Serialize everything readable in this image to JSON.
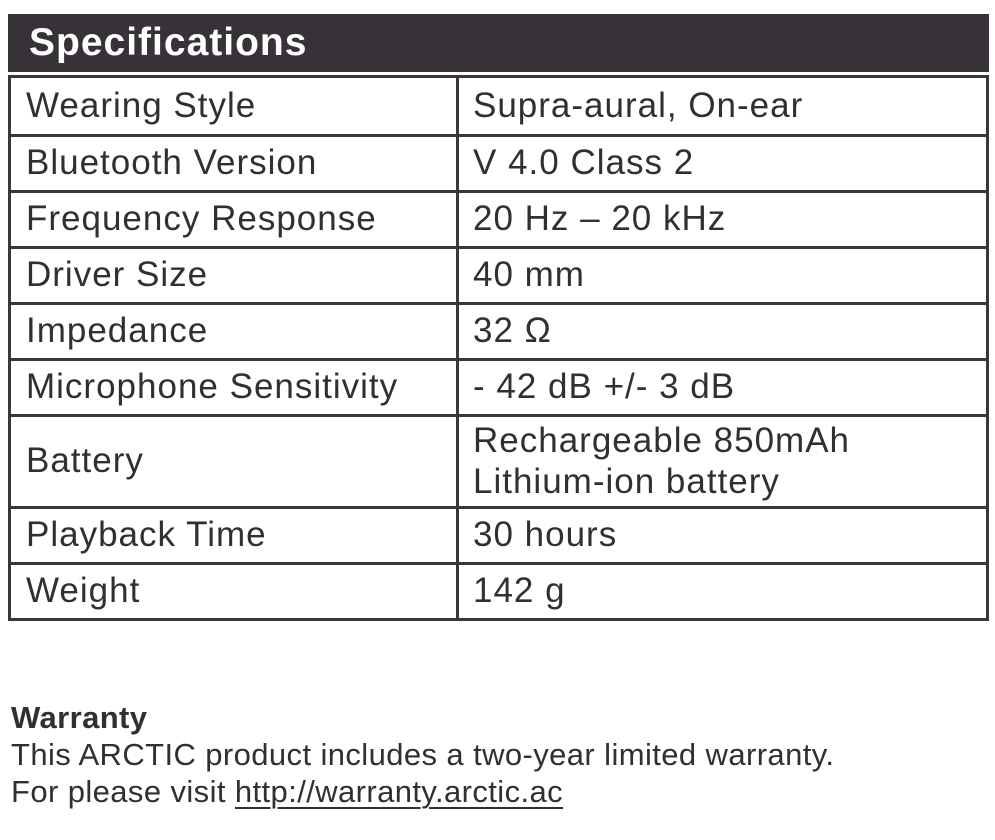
{
  "colors": {
    "header_bg": "#373237",
    "border": "#3a363a",
    "text": "#322e33"
  },
  "spec_table": {
    "title": "Specifications",
    "rows": [
      {
        "label": "Wearing Style",
        "value": "Supra-aural, On-ear"
      },
      {
        "label": "Bluetooth Version",
        "value": "V 4.0 Class 2"
      },
      {
        "label": "Frequency Response",
        "value": "20 Hz – 20 kHz"
      },
      {
        "label": "Driver Size",
        "value": "40 mm"
      },
      {
        "label": "Impedance",
        "value": "32 Ω"
      },
      {
        "label": "Microphone Sensitivity",
        "value": "- 42 dB +/- 3 dB"
      },
      {
        "label": "Battery",
        "value": "Rechargeable 850mAh Lithium-ion battery"
      },
      {
        "label": "Playback Time",
        "value": "30 hours"
      },
      {
        "label": "Weight",
        "value": "142 g"
      }
    ]
  },
  "warranty": {
    "heading": "Warranty",
    "line1": "This ARCTIC product includes a two-year limited warranty.",
    "line2_prefix": "For please visit ",
    "link_text": "http://warranty.arctic.ac"
  }
}
